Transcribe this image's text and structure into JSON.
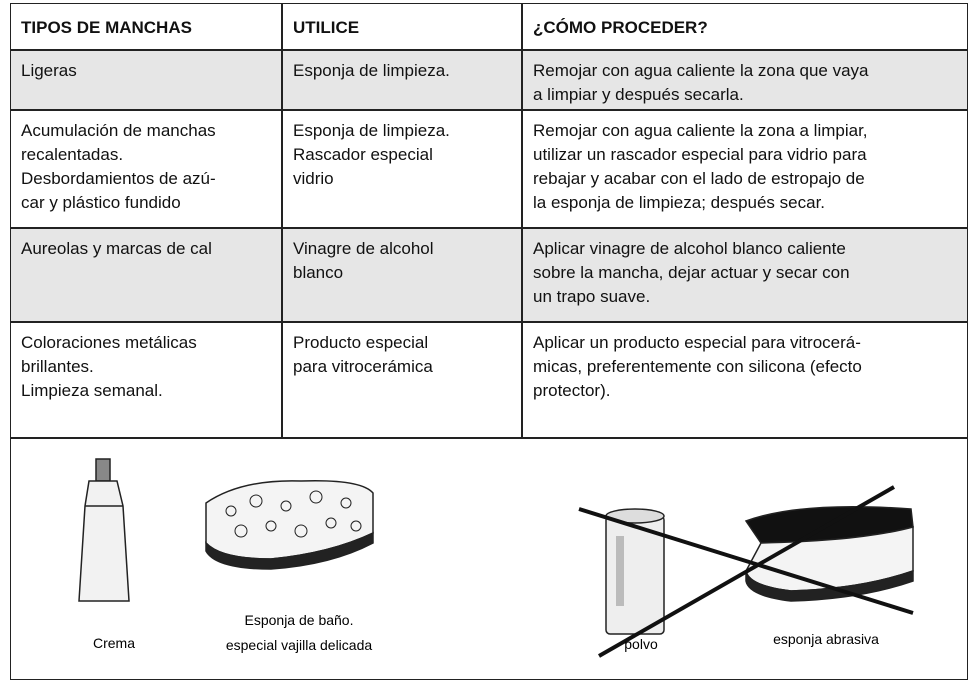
{
  "table": {
    "header": [
      "TIPOS DE MANCHAS",
      "UTILICE",
      "¿CÓMO PROCEDER?"
    ],
    "rows": [
      [
        [
          "Ligeras"
        ],
        [
          "Esponja de limpieza."
        ],
        [
          "Remojar con agua caliente la zona que vaya",
          "a limpiar y después secarla."
        ]
      ],
      [
        [
          "Acumulación de manchas",
          "recalentadas.",
          "Desbordamientos de azú-",
          "car y plástico fundido"
        ],
        [
          "Esponja de limpieza.",
          "Rascador especial",
          "vidrio"
        ],
        [
          "Remojar con agua caliente la zona a limpiar,",
          "utilizar un rascador especial para vidrio para",
          "rebajar y acabar con el lado de estropajo de",
          "la esponja de limpieza; después secar."
        ]
      ],
      [
        [
          "Aureolas y marcas de cal"
        ],
        [
          "Vinagre de alcohol",
          "blanco"
        ],
        [
          "Aplicar vinagre de alcohol blanco caliente",
          "sobre la mancha, dejar actuar y secar con",
          "un trapo suave."
        ]
      ],
      [
        [
          "Coloraciones metálicas",
          "brillantes.",
          "Limpieza semanal."
        ],
        [
          "Producto especial",
          "para vitrocerámica"
        ],
        [
          "Aplicar un producto especial para vitrocerá-",
          "micas, preferentemente con silicona (efecto",
          "protector)."
        ]
      ]
    ]
  },
  "illustrations": {
    "tube": "Crema",
    "sponge": [
      "Esponja de baño.",
      "especial vajilla delicada"
    ],
    "powder": "polvo",
    "abrasive": "esponja abrasiva"
  }
}
